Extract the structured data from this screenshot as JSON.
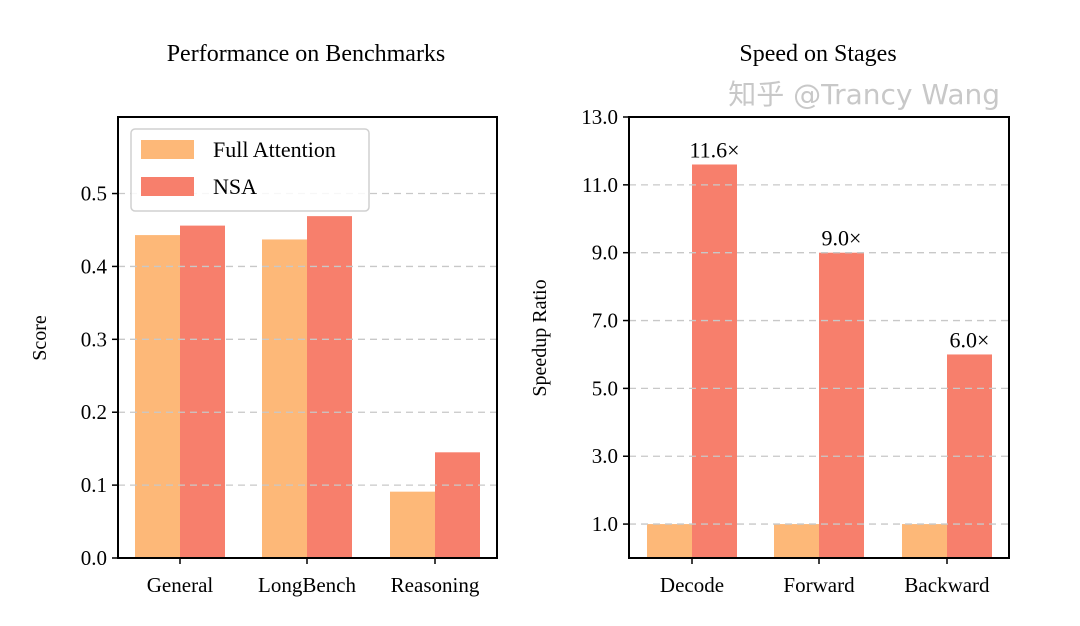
{
  "colors": {
    "full_attention": "#FDB878",
    "nsa": "#F77F6C"
  },
  "watermark": "知乎 @Trancy Wang",
  "chart_data": [
    {
      "type": "bar",
      "title": "Performance on Benchmarks",
      "xlabel": "",
      "ylabel": "Score",
      "categories": [
        "General",
        "LongBench",
        "Reasoning"
      ],
      "series": [
        {
          "name": "Full Attention",
          "values": [
            0.443,
            0.437,
            0.091
          ]
        },
        {
          "name": "NSA",
          "values": [
            0.456,
            0.469,
            0.145
          ]
        }
      ],
      "ylim": [
        0,
        0.605
      ],
      "yticks": [
        "0.0",
        "0.1",
        "0.2",
        "0.3",
        "0.4",
        "0.5"
      ],
      "grid": "horizontal dashed",
      "legend": "top-left"
    },
    {
      "type": "bar",
      "title": "Speed on Stages",
      "xlabel": "",
      "ylabel": "Speedup Ratio",
      "categories": [
        "Decode",
        "Forward",
        "Backward"
      ],
      "series": [
        {
          "values": [
            1.0,
            1.0,
            1.0
          ]
        },
        {
          "values": [
            11.6,
            9.0,
            6.0
          ],
          "labels": [
            "11.6×",
            "9.0×",
            "6.0×"
          ]
        }
      ],
      "ylim": [
        0,
        13
      ],
      "yticks": [
        "1.0",
        "3.0",
        "5.0",
        "7.0",
        "9.0",
        "11.0",
        "13.0"
      ],
      "grid": "horizontal dashed"
    }
  ]
}
